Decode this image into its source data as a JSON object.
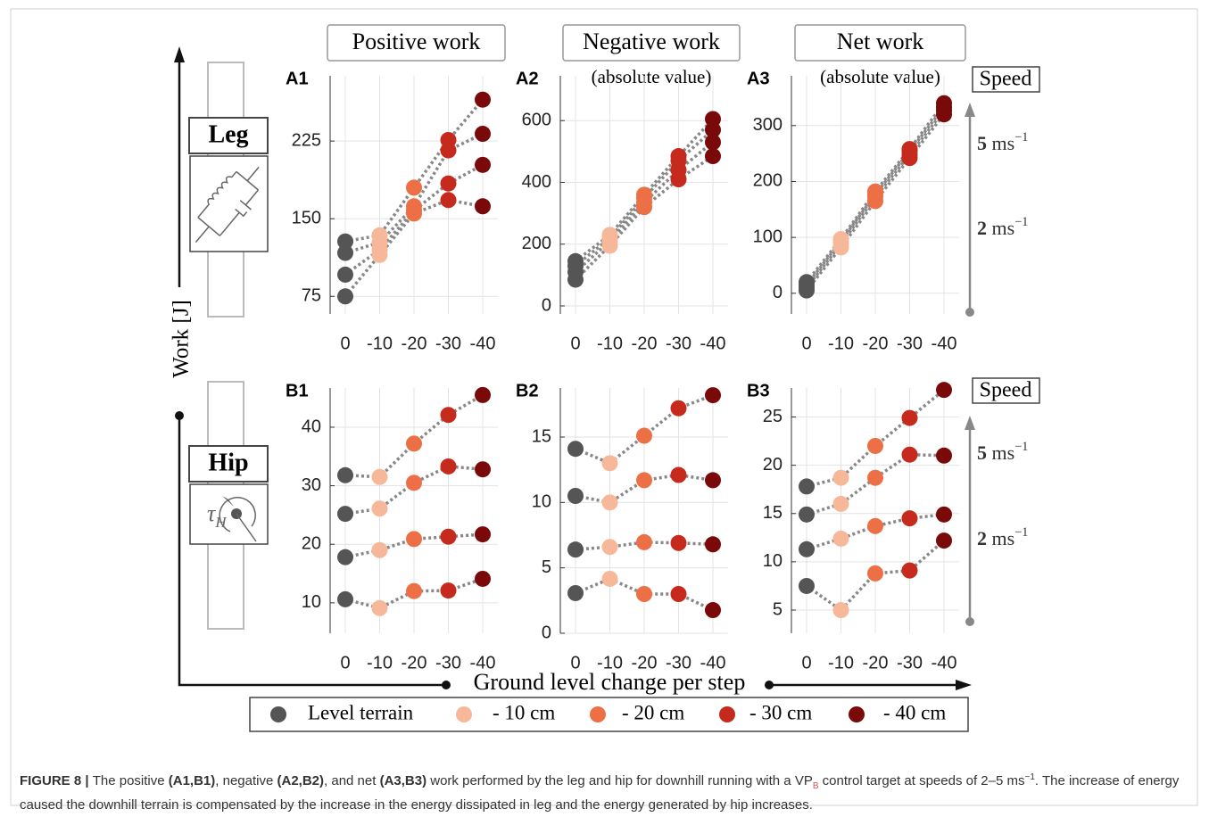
{
  "columns": [
    {
      "title": "Positive work"
    },
    {
      "title": "Negative work",
      "subtitle": "(absolute value)"
    },
    {
      "title": "Net work",
      "subtitle": "(absolute value)"
    }
  ],
  "chart_data": [
    {
      "type": "line",
      "panel_label": "A1",
      "categories": [
        "0",
        "-10",
        "-20",
        "-30",
        "-40"
      ],
      "ylim": [
        58,
        288
      ],
      "yticks": [
        75,
        150,
        225
      ],
      "grid": true,
      "line_color": "#888888",
      "series": [
        {
          "values": [
            75,
            115,
            155,
            168,
            162
          ]
        },
        {
          "values": [
            96,
            120,
            158,
            184,
            202
          ]
        },
        {
          "values": [
            117,
            127,
            162,
            216,
            232
          ]
        },
        {
          "values": [
            128,
            134,
            180,
            226,
            265
          ]
        }
      ]
    },
    {
      "type": "line",
      "panel_label": "A2",
      "categories": [
        "0",
        "-10",
        "-20",
        "-30",
        "-40"
      ],
      "ylim": [
        -26,
        745
      ],
      "yticks": [
        0,
        200,
        400,
        600
      ],
      "grid": true,
      "line_color": "#888888",
      "series": [
        {
          "values": [
            85,
            195,
            320,
            410,
            485
          ]
        },
        {
          "values": [
            110,
            210,
            335,
            440,
            530
          ]
        },
        {
          "values": [
            130,
            220,
            350,
            470,
            570
          ]
        },
        {
          "values": [
            145,
            230,
            360,
            485,
            605
          ]
        }
      ]
    },
    {
      "type": "line",
      "panel_label": "A3",
      "categories": [
        "0",
        "-10",
        "-20",
        "-30",
        "-40"
      ],
      "ylim": [
        -37,
        389
      ],
      "yticks": [
        0,
        100,
        200,
        300
      ],
      "grid": true,
      "line_color": "#888888",
      "series": [
        {
          "values": [
            5,
            82,
            165,
            242,
            320
          ]
        },
        {
          "values": [
            10,
            88,
            172,
            248,
            327
          ]
        },
        {
          "values": [
            15,
            93,
            177,
            254,
            333
          ]
        },
        {
          "values": [
            20,
            97,
            182,
            258,
            340
          ]
        }
      ]
    },
    {
      "type": "line",
      "panel_label": "B1",
      "categories": [
        "0",
        "-10",
        "-20",
        "-30",
        "-40"
      ],
      "ylim": [
        4.8,
        46.7
      ],
      "yticks": [
        10,
        20,
        30,
        40
      ],
      "grid": true,
      "line_color": "#888888",
      "series": [
        {
          "values": [
            10.6,
            9.1,
            12.0,
            12.1,
            14.1
          ]
        },
        {
          "values": [
            17.8,
            19.0,
            20.9,
            21.3,
            21.7
          ]
        },
        {
          "values": [
            25.2,
            26.1,
            30.5,
            33.3,
            32.8
          ]
        },
        {
          "values": [
            31.8,
            31.5,
            37.2,
            42.1,
            45.5
          ]
        }
      ]
    },
    {
      "type": "line",
      "panel_label": "B2",
      "categories": [
        "0",
        "-10",
        "-20",
        "-30",
        "-40"
      ],
      "ylim": [
        0,
        18.75
      ],
      "yticks": [
        0,
        5,
        10,
        15
      ],
      "grid": true,
      "line_color": "#888888",
      "series": [
        {
          "values": [
            3.07,
            4.16,
            3.0,
            3.0,
            1.77
          ]
        },
        {
          "values": [
            6.4,
            6.6,
            6.96,
            6.9,
            6.8
          ]
        },
        {
          "values": [
            10.5,
            10.0,
            11.7,
            12.1,
            11.7
          ]
        },
        {
          "values": [
            14.1,
            13.0,
            15.1,
            17.2,
            18.2
          ]
        }
      ]
    },
    {
      "type": "line",
      "panel_label": "B3",
      "categories": [
        "0",
        "-10",
        "-20",
        "-30",
        "-40"
      ],
      "ylim": [
        2.6,
        28
      ],
      "yticks": [
        5,
        10,
        15,
        20,
        25
      ],
      "grid": true,
      "line_color": "#888888",
      "series": [
        {
          "values": [
            7.5,
            5.0,
            8.8,
            9.1,
            12.2
          ]
        },
        {
          "values": [
            11.3,
            12.4,
            13.7,
            14.5,
            14.9
          ]
        },
        {
          "values": [
            14.9,
            16.0,
            18.7,
            21.1,
            21.0
          ]
        },
        {
          "values": [
            17.8,
            18.7,
            22.0,
            24.9,
            27.8
          ]
        }
      ]
    }
  ],
  "legend": {
    "items": [
      {
        "label": "Level terrain",
        "color": "#555555"
      },
      {
        "label": "- 10 cm",
        "color": "#f7b89a"
      },
      {
        "label": "- 20 cm",
        "color": "#ec6f45"
      },
      {
        "label": "- 30 cm",
        "color": "#c52a1d"
      },
      {
        "label": "- 40 cm",
        "color": "#7a0a0a"
      }
    ]
  },
  "speed_scales": [
    {
      "title": "Speed",
      "high": {
        "runs": [
          {
            "text": "5",
            "bold": true
          },
          {
            "text": " ms"
          },
          {
            "text": "−1",
            "sup": true
          }
        ]
      },
      "low": {
        "runs": [
          {
            "text": "2",
            "bold": true
          },
          {
            "text": " ms"
          },
          {
            "text": "−1",
            "sup": true
          }
        ]
      }
    },
    {
      "title": "Speed",
      "high": {
        "runs": [
          {
            "text": "5",
            "bold": true
          },
          {
            "text": " ms"
          },
          {
            "text": "−1",
            "sup": true
          }
        ]
      },
      "low": {
        "runs": [
          {
            "text": "2",
            "bold": true
          },
          {
            "text": " ms"
          },
          {
            "text": "−1",
            "sup": true
          }
        ]
      }
    }
  ],
  "leg_label": "Leg",
  "hip_label": "Hip",
  "hip_symbol": {
    "runs": [
      {
        "text": "τ",
        "italic": true
      },
      {
        "text": "H",
        "italic": true,
        "sub": true
      }
    ]
  },
  "y_axis_label": "Work [J]",
  "x_axis_label": "Ground level change per step",
  "caption": {
    "runs": [
      {
        "text": "FIGURE 8 | ",
        "bold": true
      },
      {
        "text": "The positive "
      },
      {
        "text": "(A1,B1)",
        "bold": true
      },
      {
        "text": ", negative "
      },
      {
        "text": "(A2,B2)",
        "bold": true
      },
      {
        "text": ", and net "
      },
      {
        "text": "(A3,B3)",
        "bold": true
      },
      {
        "text": " work performed by the leg and hip for downhill running with a VP"
      },
      {
        "text": "B",
        "sub": true,
        "color": "#d9534f"
      },
      {
        "text": " control target at speeds of 2–5 ms"
      },
      {
        "text": "−1",
        "sup": true
      },
      {
        "text": ". The increase of energy caused the downhill terrain is compensated by the increase in the energy dissipated in leg and the energy generated by hip increases."
      }
    ]
  }
}
